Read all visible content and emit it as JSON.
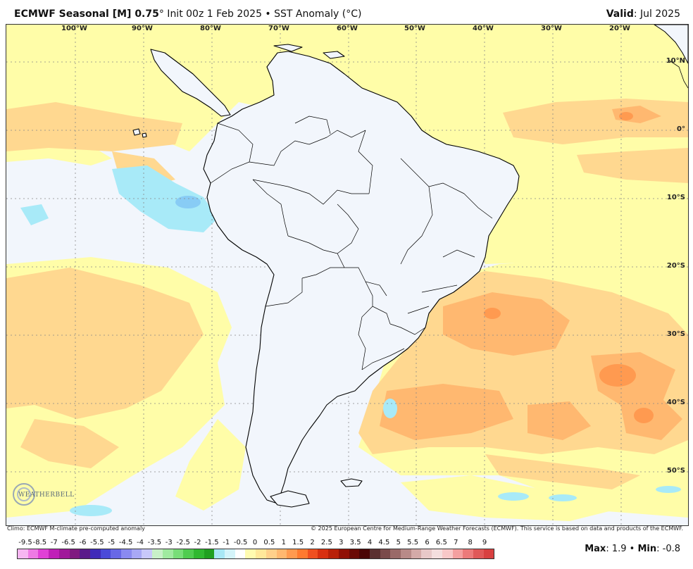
{
  "header": {
    "title_bold": "ECMWF Seasonal [M] 0.75",
    "title_deg": "°",
    "title_rest": " Init 00z 1 Feb 2025 • SST Anomaly (°C)",
    "valid_label": "Valid",
    "valid_value": ": Jul 2025"
  },
  "map": {
    "lon_labels": [
      "100°W",
      "90°W",
      "80°W",
      "70°W",
      "60°W",
      "50°W",
      "40°W",
      "30°W",
      "20°W"
    ],
    "lat_labels": [
      "10°N",
      "0°",
      "10°S",
      "20°S",
      "30°S",
      "40°S",
      "50°S"
    ],
    "logo_text": "WEATHERBELL"
  },
  "footer": {
    "climo": "Climo: ECMWF M-climate pre-computed anomaly",
    "copyright": "© 2025 European Centre for Medium-Range Weather Forecasts (ECMWF). This service is based on data and products of the ECMWF.",
    "max_label": "Max",
    "max_value": ": 1.9 • ",
    "min_label": "Min",
    "min_value": ": -0.8"
  },
  "colorbar": {
    "labels": [
      "-9.5",
      "-8.5",
      "-7",
      "-6.5",
      "-6",
      "-5.5",
      "-5",
      "-4.5",
      "-4",
      "-3.5",
      "-3",
      "-2.5",
      "-2",
      "-1.5",
      "-1",
      "-0.5",
      "0",
      "0.5",
      "1",
      "1.5",
      "2",
      "2.5",
      "3",
      "3.5",
      "4",
      "4.5",
      "5",
      "5.5",
      "6",
      "6.5",
      "7",
      "8",
      "9"
    ],
    "colors": [
      "#f7b6f2",
      "#ee7ae4",
      "#e040d6",
      "#c020b8",
      "#a0189a",
      "#801a80",
      "#5a1a8a",
      "#3f2ab8",
      "#4a4ad8",
      "#6868e6",
      "#8a8af0",
      "#a8a8f5",
      "#c8c8fa",
      "#c8f0c8",
      "#a0eaa0",
      "#78de78",
      "#50cc50",
      "#30b830",
      "#20a020",
      "#a8e8f5",
      "#d4f4fa",
      "#ffffff",
      "#fffbb0",
      "#ffe89a",
      "#ffd08a",
      "#ffb870",
      "#ff9a50",
      "#ff7a30",
      "#f05020",
      "#d83010",
      "#b82008",
      "#901005",
      "#6a0a05",
      "#4a0505",
      "#5a3030",
      "#7a4a4a",
      "#9a6a68",
      "#b88a88",
      "#d4aaa8",
      "#e8c8c8",
      "#f4dede",
      "#f8c8c8",
      "#f4a0a0",
      "#ec7a7a",
      "#e05858",
      "#d84040"
    ]
  },
  "palette": {
    "ocean_neutral": "#f2f6fc",
    "anom_yellow": "#fffda8",
    "anom_orange_light": "#ffd890",
    "anom_orange": "#ffb870",
    "anom_blue": "#a8eaf8",
    "land": "#f2f6fc",
    "coast": "#000000"
  }
}
